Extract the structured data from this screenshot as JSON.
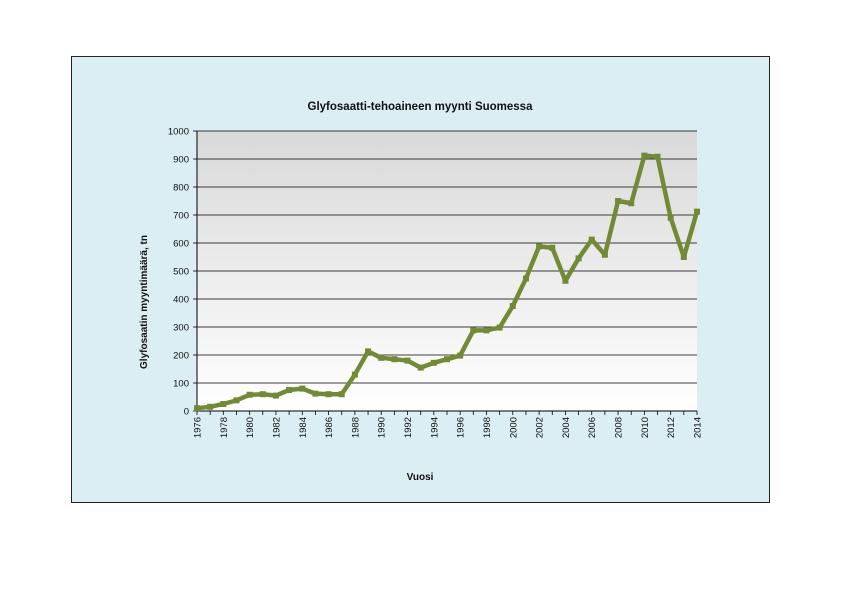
{
  "chart_data": {
    "type": "line",
    "title": "Glyfosaatti-tehoaineen myynti Suomessa",
    "xlabel": "Vuosi",
    "ylabel": "Glyfosaatin myyntimäärä,  tn",
    "ylim": [
      0,
      1000
    ],
    "yticks": [
      0,
      100,
      200,
      300,
      400,
      500,
      600,
      700,
      800,
      900,
      1000
    ],
    "xticks": [
      1976,
      1978,
      1980,
      1982,
      1984,
      1986,
      1988,
      1990,
      1992,
      1994,
      1996,
      1998,
      2000,
      2002,
      2004,
      2006,
      2008,
      2010,
      2012,
      2014
    ],
    "grid": "horizontal",
    "colors": {
      "line": "#728a36",
      "plot_top": "#d9d9d9",
      "plot_bottom": "#ffffff",
      "frame": "#daeef4"
    },
    "x": [
      1976,
      1977,
      1978,
      1979,
      1980,
      1981,
      1982,
      1983,
      1984,
      1985,
      1986,
      1987,
      1988,
      1989,
      1990,
      1991,
      1992,
      1993,
      1994,
      1995,
      1996,
      1997,
      1998,
      1999,
      2000,
      2001,
      2002,
      2003,
      2004,
      2005,
      2006,
      2007,
      2008,
      2009,
      2010,
      2011,
      2012,
      2013,
      2014
    ],
    "values": [
      10,
      15,
      25,
      38,
      58,
      60,
      55,
      75,
      80,
      62,
      60,
      60,
      130,
      213,
      190,
      185,
      180,
      155,
      172,
      185,
      198,
      288,
      288,
      298,
      375,
      473,
      588,
      583,
      465,
      545,
      612,
      558,
      750,
      742,
      912,
      908,
      690,
      550,
      712
    ]
  }
}
